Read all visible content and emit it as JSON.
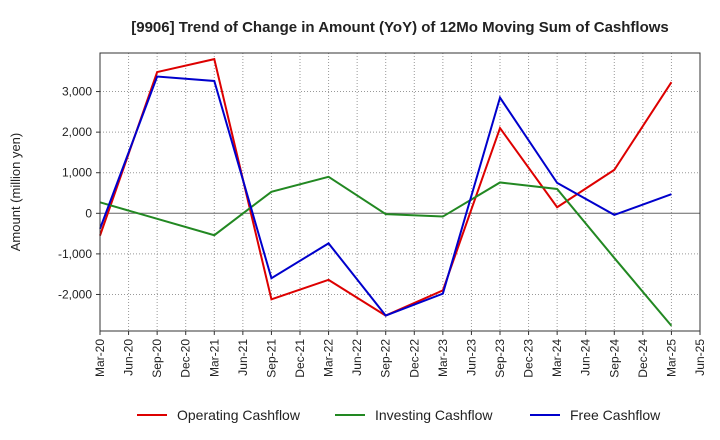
{
  "chart_data": {
    "type": "line",
    "title": "[9906]  Trend of Change in Amount (YoY) of 12Mo Moving Sum of Cashflows",
    "xlabel": "",
    "ylabel": "Amount (million yen)",
    "x_ticks": [
      "Mar-20",
      "Jun-20",
      "Sep-20",
      "Dec-20",
      "Mar-21",
      "Jun-21",
      "Sep-21",
      "Dec-21",
      "Mar-22",
      "Jun-22",
      "Sep-22",
      "Dec-22",
      "Mar-23",
      "Jun-23",
      "Sep-23",
      "Dec-23",
      "Mar-24",
      "Jun-24",
      "Sep-24",
      "Dec-24",
      "Mar-25",
      "Jun-25"
    ],
    "y_ticks": [
      -2000,
      -1000,
      0,
      1000,
      2000,
      3000
    ],
    "y_tick_labels": [
      "-2,000",
      "-1,000",
      "0",
      "1,000",
      "2,000",
      "3,000"
    ],
    "ylim": [
      -2900,
      3950
    ],
    "grid": true,
    "legend_position": "bottom",
    "series": [
      {
        "name": "Operating Cashflow",
        "color": "#dd0000",
        "points": [
          {
            "x": "Mar-20",
            "y": -550
          },
          {
            "x": "Sep-20",
            "y": 3480
          },
          {
            "x": "Mar-21",
            "y": 3800
          },
          {
            "x": "Sep-21",
            "y": -2120
          },
          {
            "x": "Mar-22",
            "y": -1640
          },
          {
            "x": "Sep-22",
            "y": -2520
          },
          {
            "x": "Mar-23",
            "y": -1900
          },
          {
            "x": "Sep-23",
            "y": 2100
          },
          {
            "x": "Mar-24",
            "y": 150
          },
          {
            "x": "Sep-24",
            "y": 1070
          },
          {
            "x": "Mar-25",
            "y": 3230
          }
        ]
      },
      {
        "name": "Investing Cashflow",
        "color": "#228822",
        "points": [
          {
            "x": "Mar-20",
            "y": 270
          },
          {
            "x": "Mar-21",
            "y": -540
          },
          {
            "x": "Sep-21",
            "y": 530
          },
          {
            "x": "Mar-22",
            "y": 900
          },
          {
            "x": "Sep-22",
            "y": -20
          },
          {
            "x": "Mar-23",
            "y": -80
          },
          {
            "x": "Sep-23",
            "y": 760
          },
          {
            "x": "Mar-24",
            "y": 600
          },
          {
            "x": "Sep-24",
            "y": -1100
          },
          {
            "x": "Mar-25",
            "y": -2770
          }
        ]
      },
      {
        "name": "Free Cashflow",
        "color": "#0000cc",
        "points": [
          {
            "x": "Mar-20",
            "y": -380
          },
          {
            "x": "Sep-20",
            "y": 3370
          },
          {
            "x": "Mar-21",
            "y": 3260
          },
          {
            "x": "Sep-21",
            "y": -1600
          },
          {
            "x": "Mar-22",
            "y": -740
          },
          {
            "x": "Sep-22",
            "y": -2520
          },
          {
            "x": "Mar-23",
            "y": -1980
          },
          {
            "x": "Sep-23",
            "y": 2850
          },
          {
            "x": "Mar-24",
            "y": 750
          },
          {
            "x": "Sep-24",
            "y": -40
          },
          {
            "x": "Mar-25",
            "y": 470
          }
        ]
      }
    ]
  }
}
